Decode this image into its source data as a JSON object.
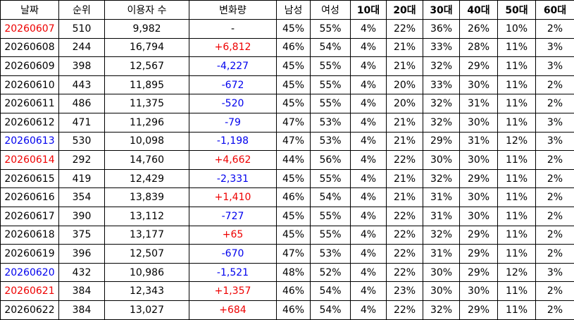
{
  "table": {
    "header": [
      "날짜",
      "순위",
      "이용자 수",
      "변화량",
      "남성",
      "여성",
      "10대",
      "20대",
      "30대",
      "40대",
      "50대",
      "60대"
    ],
    "rows": [
      {
        "cells": [
          "20260607",
          "510",
          "9,982",
          "-",
          "45%",
          "55%",
          "4%",
          "22%",
          "36%",
          "26%",
          "10%",
          "2%"
        ],
        "date_color": "#ee0000",
        "change_color": "#000000"
      },
      {
        "cells": [
          "20260608",
          "244",
          "16,794",
          "+6,812",
          "46%",
          "54%",
          "4%",
          "21%",
          "33%",
          "28%",
          "11%",
          "3%"
        ],
        "date_color": "#000000",
        "change_color": "#ee0000"
      },
      {
        "cells": [
          "20260609",
          "398",
          "12,567",
          "-4,227",
          "45%",
          "55%",
          "4%",
          "21%",
          "32%",
          "29%",
          "11%",
          "3%"
        ],
        "date_color": "#000000",
        "change_color": "#0000ee"
      },
      {
        "cells": [
          "20260610",
          "443",
          "11,895",
          "-672",
          "45%",
          "55%",
          "4%",
          "20%",
          "33%",
          "30%",
          "11%",
          "2%"
        ],
        "date_color": "#000000",
        "change_color": "#0000ee"
      },
      {
        "cells": [
          "20260611",
          "486",
          "11,375",
          "-520",
          "45%",
          "55%",
          "4%",
          "20%",
          "32%",
          "31%",
          "11%",
          "2%"
        ],
        "date_color": "#000000",
        "change_color": "#0000ee"
      },
      {
        "cells": [
          "20260612",
          "471",
          "11,296",
          "-79",
          "47%",
          "53%",
          "4%",
          "21%",
          "32%",
          "30%",
          "11%",
          "3%"
        ],
        "date_color": "#000000",
        "change_color": "#0000ee"
      },
      {
        "cells": [
          "20260613",
          "530",
          "10,098",
          "-1,198",
          "47%",
          "53%",
          "4%",
          "21%",
          "29%",
          "31%",
          "12%",
          "3%"
        ],
        "date_color": "#0000ee",
        "change_color": "#0000ee"
      },
      {
        "cells": [
          "20260614",
          "292",
          "14,760",
          "+4,662",
          "44%",
          "56%",
          "4%",
          "22%",
          "30%",
          "30%",
          "11%",
          "2%"
        ],
        "date_color": "#ee0000",
        "change_color": "#ee0000"
      },
      {
        "cells": [
          "20260615",
          "419",
          "12,429",
          "-2,331",
          "45%",
          "55%",
          "4%",
          "21%",
          "32%",
          "29%",
          "11%",
          "2%"
        ],
        "date_color": "#000000",
        "change_color": "#0000ee"
      },
      {
        "cells": [
          "20260616",
          "354",
          "13,839",
          "+1,410",
          "46%",
          "54%",
          "4%",
          "21%",
          "31%",
          "30%",
          "11%",
          "2%"
        ],
        "date_color": "#000000",
        "change_color": "#ee0000"
      },
      {
        "cells": [
          "20260617",
          "390",
          "13,112",
          "-727",
          "45%",
          "55%",
          "4%",
          "22%",
          "31%",
          "30%",
          "11%",
          "2%"
        ],
        "date_color": "#000000",
        "change_color": "#0000ee"
      },
      {
        "cells": [
          "20260618",
          "375",
          "13,177",
          "+65",
          "45%",
          "55%",
          "4%",
          "22%",
          "32%",
          "29%",
          "11%",
          "2%"
        ],
        "date_color": "#000000",
        "change_color": "#ee0000"
      },
      {
        "cells": [
          "20260619",
          "396",
          "12,507",
          "-670",
          "47%",
          "53%",
          "4%",
          "22%",
          "31%",
          "29%",
          "11%",
          "2%"
        ],
        "date_color": "#000000",
        "change_color": "#0000ee"
      },
      {
        "cells": [
          "20260620",
          "432",
          "10,986",
          "-1,521",
          "48%",
          "52%",
          "4%",
          "22%",
          "30%",
          "29%",
          "12%",
          "3%"
        ],
        "date_color": "#0000ee",
        "change_color": "#0000ee"
      },
      {
        "cells": [
          "20260621",
          "384",
          "12,343",
          "+1,357",
          "46%",
          "54%",
          "4%",
          "23%",
          "30%",
          "30%",
          "11%",
          "2%"
        ],
        "date_color": "#ee0000",
        "change_color": "#ee0000"
      },
      {
        "cells": [
          "20260622",
          "384",
          "13,027",
          "+684",
          "46%",
          "54%",
          "4%",
          "22%",
          "32%",
          "29%",
          "11%",
          "2%"
        ],
        "date_color": "#000000",
        "change_color": "#ee0000"
      }
    ]
  }
}
